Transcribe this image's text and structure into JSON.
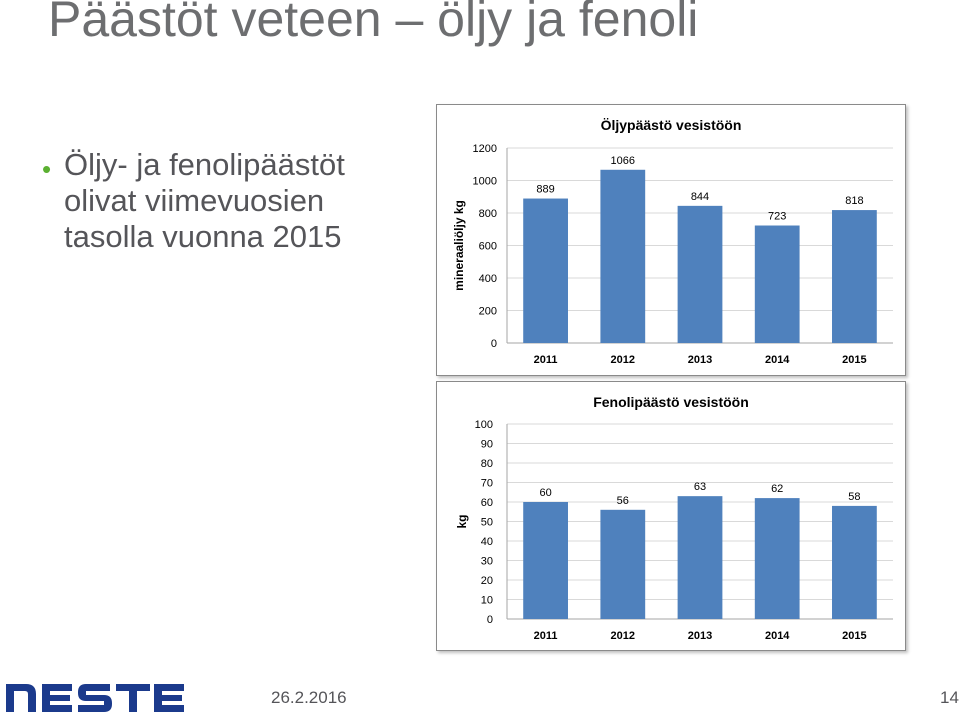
{
  "slide": {
    "title": "Päästöt veteen – öljy ja fenoli",
    "bullet": {
      "lines": [
        "Öljy- ja fenolipäästöt",
        "olivat viimevuosien",
        "tasolla vuonna 2015"
      ]
    },
    "footer": {
      "logo_text": "NESTE",
      "date": "26.2.2016",
      "page_number": "14"
    }
  },
  "colors": {
    "bar": "#4f81bd",
    "gridline": "#d9d9d9",
    "title_text": "#6d6e70",
    "bullet_marker": "#5bb031",
    "logo": "#1b3a8c"
  },
  "chart_data": [
    {
      "type": "bar",
      "title": "Öljypäästö vesistöön",
      "ylabel": "mineraaliöljy kg",
      "xlabel": "",
      "categories": [
        "2011",
        "2012",
        "2013",
        "2014",
        "2015"
      ],
      "values": [
        889,
        1066,
        844,
        723,
        818
      ],
      "ylim": [
        0,
        1200
      ],
      "yticks": [
        0,
        200,
        400,
        600,
        800,
        1000,
        1200
      ],
      "grid": true,
      "legend": "none"
    },
    {
      "type": "bar",
      "title": "Fenolipäästö vesistöön",
      "ylabel": "kg",
      "xlabel": "",
      "categories": [
        "2011",
        "2012",
        "2013",
        "2014",
        "2015"
      ],
      "values": [
        60,
        56,
        63,
        62,
        58
      ],
      "ylim": [
        0,
        100
      ],
      "yticks": [
        0,
        10,
        20,
        30,
        40,
        50,
        60,
        70,
        80,
        90,
        100
      ],
      "grid": true,
      "legend": "none"
    }
  ]
}
